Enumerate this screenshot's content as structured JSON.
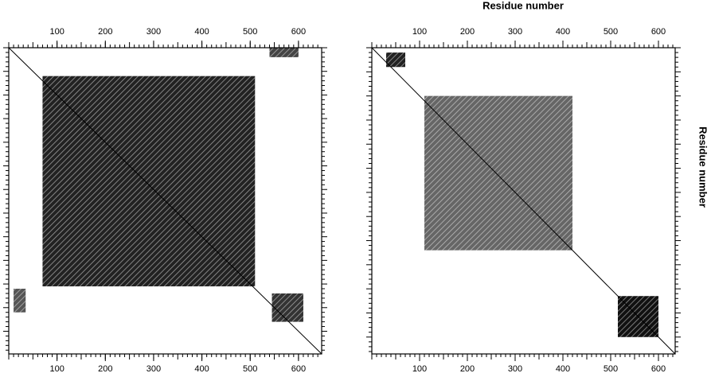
{
  "chart_data": [
    {
      "type": "dotplot",
      "xlim": [
        0,
        648
      ],
      "ylim": [
        0,
        648
      ],
      "xticks": [
        100,
        200,
        300,
        400,
        500,
        600
      ],
      "minor_tick_step": 10,
      "diagonal": true,
      "regions": [
        {
          "x": [
            70,
            510
          ],
          "y": [
            60,
            505
          ],
          "color": "#222222"
        },
        {
          "x": [
            545,
            610
          ],
          "y": [
            520,
            580
          ],
          "color": "#333333"
        },
        {
          "x": [
            540,
            600
          ],
          "y": [
            0,
            20
          ],
          "color": "#444444"
        },
        {
          "x": [
            10,
            35
          ],
          "y": [
            510,
            560
          ],
          "color": "#555555"
        }
      ]
    },
    {
      "type": "dotplot",
      "xlim": [
        0,
        635
      ],
      "ylim": [
        0,
        635
      ],
      "xticks": [
        100,
        200,
        300,
        400,
        500,
        600
      ],
      "minor_tick_step": 10,
      "diagonal": true,
      "x_label": "Residue number",
      "y_label": "Residue number",
      "regions": [
        {
          "x": [
            110,
            420
          ],
          "y": [
            100,
            420
          ],
          "color": "#666666"
        },
        {
          "x": [
            515,
            600
          ],
          "y": [
            515,
            600
          ],
          "color": "#111111"
        },
        {
          "x": [
            30,
            70
          ],
          "y": [
            10,
            40
          ],
          "color": "#222222"
        }
      ]
    }
  ]
}
